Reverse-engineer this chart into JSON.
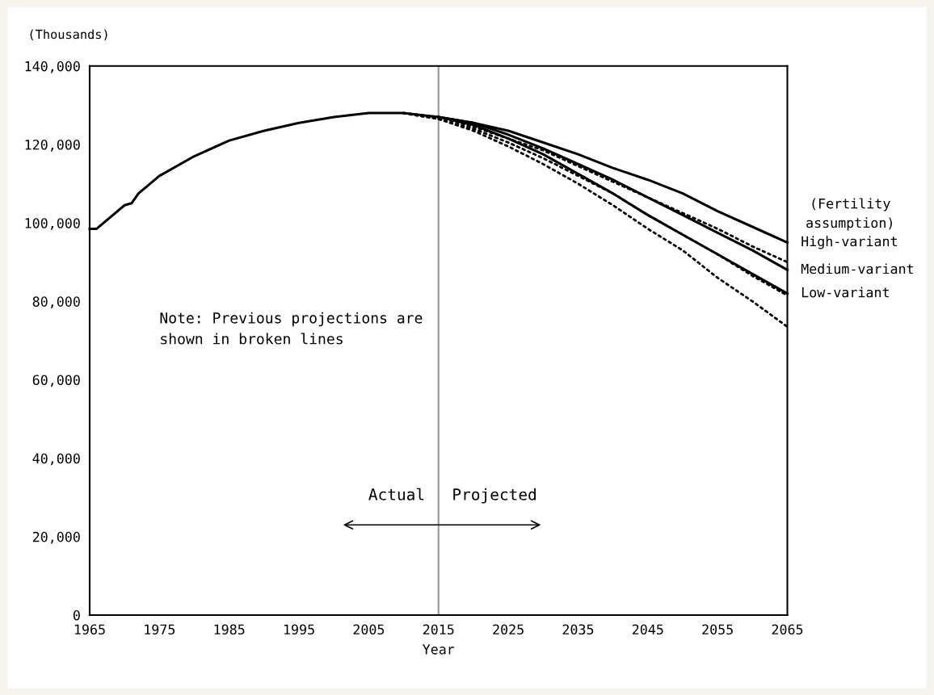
{
  "chart_data": {
    "type": "line",
    "xlabel": "Year",
    "ylabel": "(Thousands)",
    "xlim": [
      1965,
      2065
    ],
    "xticks": [
      1965,
      1975,
      1985,
      1995,
      2005,
      2015,
      2025,
      2035,
      2045,
      2055,
      2065
    ],
    "ylim": [
      0,
      140000
    ],
    "yticks": [
      {
        "value": 0,
        "label": "0"
      },
      {
        "value": 20000,
        "label": "20,000"
      },
      {
        "value": 40000,
        "label": "40,000"
      },
      {
        "value": 60000,
        "label": "60,000"
      },
      {
        "value": 80000,
        "label": "80,000"
      },
      {
        "value": 100000,
        "label": "100,000"
      },
      {
        "value": 120000,
        "label": "120,000"
      },
      {
        "value": 140000,
        "label": "140,000"
      }
    ],
    "grid": false,
    "marker": "none",
    "series": [
      {
        "name": "High-variant",
        "color": "#000000",
        "line_style": "solid",
        "x": [
          2015,
          2020,
          2025,
          2030,
          2035,
          2040,
          2045,
          2050,
          2055,
          2060,
          2065
        ],
        "values": [
          127000,
          125500,
          123500,
          120500,
          117500,
          114000,
          111000,
          107500,
          103000,
          99000,
          95000
        ]
      },
      {
        "name": "Medium-variant",
        "color": "#000000",
        "line_style": "solid",
        "x": [
          1965,
          1966,
          1970,
          1971,
          1972,
          1975,
          1980,
          1985,
          1990,
          1995,
          2000,
          2005,
          2008,
          2010,
          2015,
          2020,
          2025,
          2030,
          2035,
          2040,
          2045,
          2050,
          2055,
          2060,
          2065
        ],
        "values": [
          98500,
          98500,
          104500,
          105000,
          107500,
          112000,
          117000,
          121000,
          123500,
          125500,
          127000,
          128000,
          128000,
          128000,
          127000,
          125500,
          122500,
          119000,
          115000,
          111000,
          106500,
          102000,
          97500,
          93000,
          88000
        ]
      },
      {
        "name": "Low-variant",
        "color": "#000000",
        "line_style": "solid",
        "x": [
          2015,
          2020,
          2025,
          2030,
          2035,
          2040,
          2045,
          2050,
          2055,
          2060,
          2065
        ],
        "values": [
          127000,
          125000,
          121500,
          117500,
          112500,
          107500,
          102000,
          97000,
          92000,
          87000,
          82000
        ]
      },
      {
        "color": "#000000",
        "line_style": "dotted",
        "x": [
          2010,
          2015,
          2020,
          2025,
          2030,
          2035,
          2040,
          2045,
          2050,
          2055,
          2060,
          2065
        ],
        "values": [
          128000,
          127000,
          124500,
          121500,
          118500,
          114500,
          110500,
          106500,
          102500,
          98500,
          94000,
          90000
        ]
      },
      {
        "color": "#000000",
        "line_style": "dotted",
        "x": [
          2010,
          2015,
          2020,
          2025,
          2030,
          2035,
          2040,
          2045,
          2050,
          2055,
          2060,
          2065
        ],
        "values": [
          128000,
          126500,
          124000,
          120500,
          116500,
          112000,
          107500,
          102000,
          97000,
          92000,
          86500,
          81500
        ]
      },
      {
        "color": "#000000",
        "line_style": "dotted",
        "x": [
          2010,
          2015,
          2020,
          2025,
          2030,
          2035,
          2040,
          2045,
          2050,
          2055,
          2060,
          2065
        ],
        "values": [
          128000,
          126500,
          123500,
          119500,
          115000,
          110000,
          104500,
          98500,
          93000,
          86000,
          80000,
          73500
        ]
      }
    ],
    "ref_lines": [
      {
        "axis": "x",
        "value": 2015,
        "color": "#999999",
        "line_style": "solid"
      }
    ],
    "annotations": [
      {
        "text": "(Fertility\nassumption)"
      },
      {
        "text": "Note: Previous projections are\nshown in broken lines"
      },
      {
        "text": "Actual",
        "x": 2015,
        "y": 23000
      },
      {
        "text": "Projected",
        "x": 2015,
        "y": 23000
      }
    ]
  }
}
